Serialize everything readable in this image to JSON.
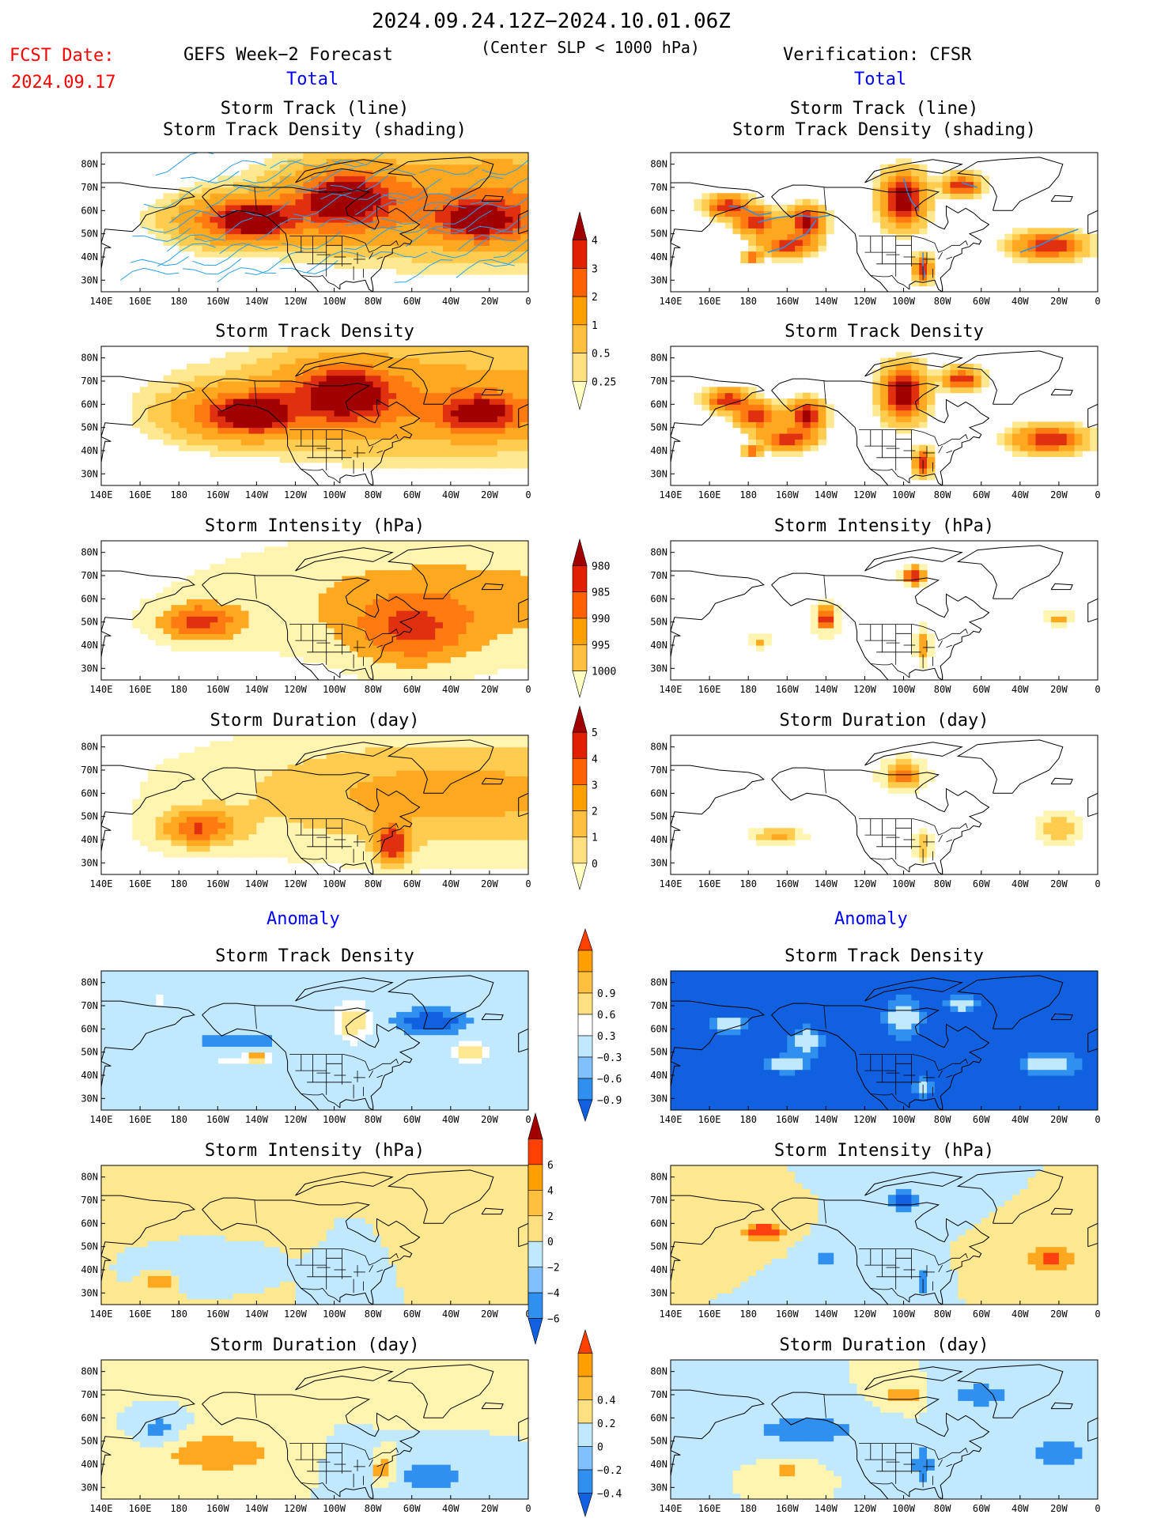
{
  "header": {
    "date_range": "2024.09.24.12Z−2024.10.01.06Z",
    "fcst_label": "FCST Date:",
    "fcst_date": "2024.09.17",
    "model_title": "GEFS Week−2 Forecast",
    "condition": "(Center SLP < 1000 hPa)",
    "verification": "Verification: CFSR",
    "total_label": "Total",
    "anomaly_label": "Anomaly"
  },
  "colors": {
    "text_red": "#ff0000",
    "text_blue": "#0000ff",
    "land": "#000000"
  },
  "axes": {
    "lon_ticks": [
      "140E",
      "160E",
      "180",
      "160W",
      "140W",
      "120W",
      "100W",
      "80W",
      "60W",
      "40W",
      "20W",
      "0"
    ],
    "lat_ticks": [
      "80N",
      "70N",
      "60N",
      "50N",
      "40N",
      "30N"
    ]
  },
  "colorbars": [
    {
      "id": "density",
      "labels": [
        "0.25",
        "0.5",
        "1",
        "2",
        "3",
        "4"
      ],
      "colors": [
        "#ffffc0",
        "#ffe080",
        "#ffc040",
        "#ffa000",
        "#ff6000",
        "#e02000",
        "#a00000"
      ]
    },
    {
      "id": "intensity",
      "labels": [
        "1000",
        "995",
        "990",
        "985",
        "980"
      ],
      "colors": [
        "#ffffc0",
        "#ffc040",
        "#ffa000",
        "#ff6000",
        "#e02000",
        "#a00000"
      ]
    },
    {
      "id": "duration",
      "labels": [
        "0",
        "1",
        "2",
        "3",
        "4",
        "5"
      ],
      "colors": [
        "#ffffc0",
        "#ffe080",
        "#ffc040",
        "#ffa000",
        "#ff6000",
        "#e02000",
        "#a00000"
      ]
    },
    {
      "id": "anom_density",
      "labels": [
        "−0.9",
        "−0.6",
        "−0.3",
        "0.3",
        "0.6",
        "0.9"
      ],
      "colors": [
        "#1060e0",
        "#3090f0",
        "#80c0ff",
        "#c0e8ff",
        "#ffffff",
        "#ffe080",
        "#ffc040",
        "#ffa000",
        "#ff4000"
      ]
    },
    {
      "id": "anom_intensity",
      "labels": [
        "−6",
        "−4",
        "−2",
        "0",
        "2",
        "4",
        "6"
      ],
      "colors": [
        "#1060e0",
        "#3090f0",
        "#80c0ff",
        "#c0e8ff",
        "#ffe080",
        "#ffc040",
        "#ffa000",
        "#ff4000",
        "#a00000"
      ]
    },
    {
      "id": "anom_duration",
      "labels": [
        "−0.4",
        "−0.2",
        "0",
        "0.2",
        "0.4"
      ],
      "colors": [
        "#1060e0",
        "#3090f0",
        "#80c0ff",
        "#c0e8ff",
        "#ffe080",
        "#ffc040",
        "#ffa000",
        "#ff4000"
      ]
    }
  ],
  "chart_data": [
    {
      "type": "heatmap",
      "panel": "forecast-track",
      "title": "Storm Track (line)",
      "subtitle": "Storm Track Density (shading)",
      "scheme": "density",
      "blobs": [
        [
          -15,
          63,
          90,
          22,
          2
        ],
        [
          -95,
          64,
          30,
          14,
          3
        ],
        [
          -150,
          56,
          30,
          10,
          3
        ],
        [
          -25,
          56,
          20,
          8,
          4
        ],
        [
          -140,
          56,
          14,
          6,
          4
        ],
        [
          -95,
          65,
          14,
          7,
          3.5
        ]
      ]
    },
    {
      "type": "heatmap",
      "panel": "verif-track",
      "title": "Storm Track (line)",
      "subtitle": "Storm Track Density (shading)",
      "scheme": "density",
      "blobs": [
        [
          170,
          62,
          10,
          4,
          4
        ],
        [
          -175,
          55,
          10,
          5,
          3.5
        ],
        [
          -150,
          55,
          8,
          6,
          4.5
        ],
        [
          -160,
          45,
          12,
          4,
          4
        ],
        [
          -100,
          65,
          10,
          10,
          5
        ],
        [
          -70,
          71,
          8,
          4,
          4
        ],
        [
          -25,
          45,
          16,
          5,
          4
        ],
        [
          -90,
          35,
          4,
          5,
          4
        ],
        [
          -178,
          40,
          4,
          2,
          3
        ]
      ]
    },
    {
      "type": "heatmap",
      "panel": "forecast-density",
      "title": "Storm Track Density",
      "scheme": "density",
      "blobs": [
        [
          -40,
          62,
          110,
          22,
          1.5
        ],
        [
          -95,
          64,
          30,
          14,
          3
        ],
        [
          -150,
          56,
          30,
          10,
          3
        ],
        [
          -25,
          56,
          20,
          8,
          4
        ],
        [
          -140,
          56,
          14,
          6,
          4
        ],
        [
          -95,
          65,
          14,
          7,
          3.5
        ]
      ]
    },
    {
      "type": "heatmap",
      "panel": "verif-density",
      "title": "Storm Track Density",
      "scheme": "density",
      "blobs": [
        [
          170,
          62,
          10,
          4,
          4
        ],
        [
          -175,
          55,
          10,
          5,
          3.5
        ],
        [
          -150,
          55,
          8,
          6,
          4.5
        ],
        [
          -160,
          45,
          12,
          4,
          4
        ],
        [
          -100,
          65,
          10,
          10,
          5
        ],
        [
          -70,
          71,
          8,
          4,
          4
        ],
        [
          -25,
          45,
          16,
          5,
          4
        ],
        [
          -90,
          35,
          4,
          5,
          4
        ],
        [
          -178,
          40,
          4,
          2,
          3
        ]
      ]
    },
    {
      "type": "heatmap",
      "panel": "forecast-intensity",
      "title": "Storm Intensity (hPa)",
      "scheme": "intensity",
      "blobs": [
        [
          -40,
          60,
          120,
          25,
          2
        ],
        [
          -170,
          50,
          20,
          8,
          3.5
        ],
        [
          -60,
          45,
          30,
          15,
          2.5
        ]
      ]
    },
    {
      "type": "heatmap",
      "panel": "verif-intensity",
      "title": "Storm Intensity (hPa)",
      "scheme": "intensity",
      "blobs": [
        [
          -140,
          52,
          6,
          6,
          4
        ],
        [
          -95,
          70,
          6,
          4,
          4
        ],
        [
          -90,
          40,
          4,
          8,
          2.5
        ],
        [
          -175,
          42,
          6,
          3,
          2
        ],
        [
          -20,
          52,
          8,
          3,
          2
        ]
      ]
    },
    {
      "type": "heatmap",
      "panel": "forecast-duration",
      "title": "Storm Duration (day)",
      "scheme": "duration",
      "blobs": [
        [
          -40,
          60,
          120,
          25,
          3
        ],
        [
          -170,
          45,
          20,
          8,
          4
        ],
        [
          -70,
          38,
          8,
          8,
          5
        ]
      ]
    },
    {
      "type": "heatmap",
      "panel": "verif-duration",
      "title": "Storm Duration (day)",
      "scheme": "duration",
      "blobs": [
        [
          -100,
          68,
          10,
          6,
          4
        ],
        [
          -165,
          42,
          12,
          3,
          3
        ],
        [
          -20,
          45,
          10,
          6,
          2.5
        ],
        [
          -90,
          38,
          4,
          6,
          2.5
        ]
      ]
    },
    {
      "type": "heatmap",
      "panel": "forecast-anom-density",
      "title": "Storm Track Density",
      "scheme": "anom_density",
      "blobs": [
        [
          -90,
          63,
          10,
          9,
          0.9
        ],
        [
          -30,
          50,
          10,
          5,
          0.9
        ],
        [
          -50,
          63,
          20,
          6,
          -0.9
        ],
        [
          -150,
          55,
          25,
          4,
          -0.6
        ],
        [
          -150,
          47,
          25,
          3,
          0.4
        ],
        [
          -140,
          48,
          5,
          3,
          0.9
        ],
        [
          170,
          72,
          6,
          5,
          0.4
        ]
      ]
    },
    {
      "type": "heatmap",
      "panel": "verif-anom-density",
      "title": "Storm Track Density",
      "scheme": "anom_density",
      "base": -0.9,
      "blobs": [
        [
          170,
          62,
          10,
          4,
          0.9
        ],
        [
          -150,
          55,
          8,
          6,
          0.9
        ],
        [
          -160,
          45,
          12,
          4,
          0.9
        ],
        [
          -100,
          65,
          10,
          10,
          0.9
        ],
        [
          -70,
          71,
          8,
          4,
          0.9
        ],
        [
          -25,
          45,
          16,
          5,
          0.9
        ],
        [
          -90,
          35,
          4,
          5,
          0.9
        ]
      ]
    },
    {
      "type": "heatmap",
      "panel": "forecast-anom-intensity",
      "title": "Storm Intensity (hPa)",
      "scheme": "anom_intensity",
      "blobs": [
        [
          -40,
          65,
          120,
          20,
          1.5
        ],
        [
          -90,
          55,
          20,
          20,
          -1.5
        ],
        [
          -160,
          45,
          30,
          8,
          -1.5
        ],
        [
          170,
          35,
          6,
          4,
          4
        ]
      ]
    },
    {
      "type": "heatmap",
      "panel": "verif-anom-intensity",
      "title": "Storm Intensity (hPa)",
      "scheme": "anom_intensity",
      "blobs": [
        [
          -172,
          57,
          10,
          4,
          6
        ],
        [
          -25,
          45,
          12,
          5,
          5
        ],
        [
          -140,
          45,
          8,
          6,
          -3
        ],
        [
          -100,
          70,
          10,
          5,
          -5
        ],
        [
          -90,
          35,
          4,
          6,
          -3
        ]
      ]
    },
    {
      "type": "heatmap",
      "panel": "forecast-anom-duration",
      "title": "Storm Duration (day)",
      "scheme": "anom_duration",
      "blobs": [
        [
          -40,
          75,
          120,
          8,
          0.2
        ],
        [
          -160,
          45,
          30,
          8,
          0.4
        ],
        [
          -50,
          35,
          20,
          8,
          -0.3
        ],
        [
          -90,
          40,
          10,
          8,
          -0.2
        ],
        [
          170,
          55,
          10,
          8,
          -0.3
        ],
        [
          -75,
          38,
          6,
          6,
          0.4
        ]
      ]
    },
    {
      "type": "heatmap",
      "panel": "verif-anom-duration",
      "title": "Storm Duration (day)",
      "scheme": "anom_duration",
      "blobs": [
        [
          -100,
          70,
          8,
          4,
          0.4
        ],
        [
          -150,
          55,
          25,
          6,
          -0.4
        ],
        [
          -20,
          45,
          15,
          6,
          -0.4
        ],
        [
          -160,
          38,
          8,
          3,
          0.3
        ],
        [
          -90,
          40,
          5,
          8,
          -0.4
        ],
        [
          -60,
          70,
          15,
          5,
          -0.4
        ]
      ]
    }
  ]
}
